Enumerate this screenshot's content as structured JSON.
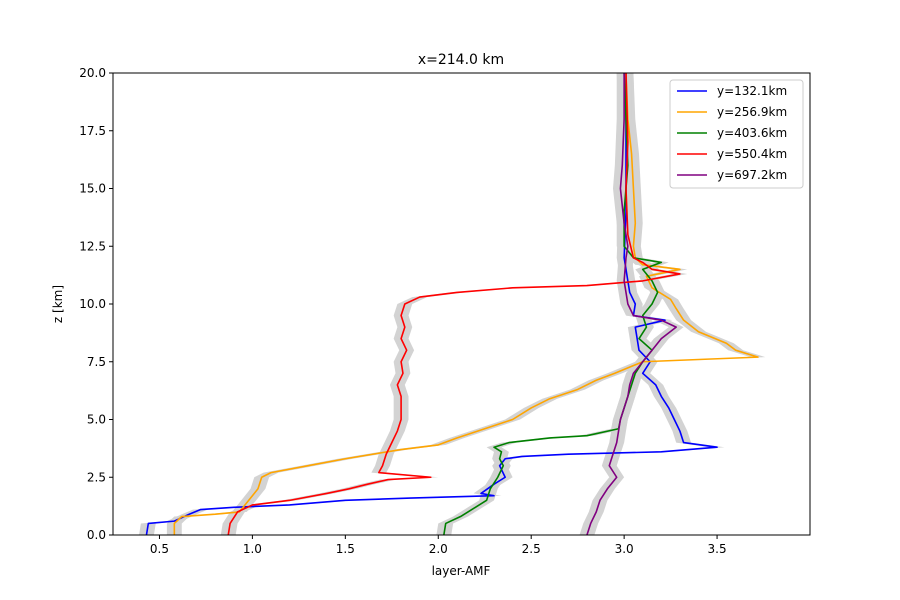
{
  "chart_data": {
    "type": "line",
    "title": "x=214.0 km",
    "xlabel": "layer-AMF",
    "ylabel": "z [km]",
    "xlim": [
      0.25,
      4.0
    ],
    "ylim": [
      0,
      20
    ],
    "x_ticks": [
      "0.5",
      "1.0",
      "1.5",
      "2.0",
      "2.5",
      "3.0",
      "3.5"
    ],
    "x_tick_values": [
      0.5,
      1.0,
      1.5,
      2.0,
      2.5,
      3.0,
      3.5
    ],
    "y_ticks": [
      "0.0",
      "2.5",
      "5.0",
      "7.5",
      "10.0",
      "12.5",
      "15.0",
      "17.5",
      "20.0"
    ],
    "y_tick_values": [
      0,
      2.5,
      5.0,
      7.5,
      10.0,
      12.5,
      15.0,
      17.5,
      20.0
    ],
    "grid": false,
    "legend_position": "top-right",
    "uncertainty_band_color": "#d3d3d3",
    "band_halfwidth": 0.04,
    "series": [
      {
        "name": "y=132.1km",
        "color": "#0000ff",
        "points": [
          [
            0.43,
            0.0
          ],
          [
            0.44,
            0.5
          ],
          [
            0.58,
            0.6
          ],
          [
            0.66,
            0.9
          ],
          [
            0.72,
            1.1
          ],
          [
            0.9,
            1.2
          ],
          [
            1.2,
            1.3
          ],
          [
            1.5,
            1.5
          ],
          [
            1.85,
            1.6
          ],
          [
            2.3,
            1.7
          ],
          [
            2.23,
            1.8
          ],
          [
            2.3,
            2.2
          ],
          [
            2.36,
            2.5
          ],
          [
            2.33,
            3.0
          ],
          [
            2.36,
            3.3
          ],
          [
            2.45,
            3.4
          ],
          [
            2.7,
            3.5
          ],
          [
            3.2,
            3.6
          ],
          [
            3.5,
            3.8
          ],
          [
            3.32,
            4.0
          ],
          [
            3.3,
            4.5
          ],
          [
            3.27,
            5.0
          ],
          [
            3.24,
            5.5
          ],
          [
            3.2,
            6.0
          ],
          [
            3.17,
            6.5
          ],
          [
            3.1,
            7.0
          ],
          [
            3.14,
            7.5
          ],
          [
            3.08,
            8.0
          ],
          [
            3.07,
            8.5
          ],
          [
            3.06,
            9.0
          ],
          [
            3.22,
            9.3
          ],
          [
            3.05,
            9.5
          ],
          [
            3.06,
            10.0
          ],
          [
            3.03,
            10.5
          ],
          [
            3.02,
            11.0
          ],
          [
            3.0,
            12.0
          ],
          [
            3.01,
            14.0
          ],
          [
            3.01,
            17.0
          ],
          [
            3.01,
            20.0
          ]
        ]
      },
      {
        "name": "y=256.9km",
        "color": "#ffa500",
        "points": [
          [
            0.58,
            0.0
          ],
          [
            0.58,
            0.5
          ],
          [
            0.62,
            0.8
          ],
          [
            0.8,
            0.9
          ],
          [
            0.93,
            1.0
          ],
          [
            0.98,
            1.5
          ],
          [
            1.03,
            2.0
          ],
          [
            1.05,
            2.5
          ],
          [
            1.1,
            2.7
          ],
          [
            1.3,
            3.0
          ],
          [
            1.5,
            3.3
          ],
          [
            1.8,
            3.7
          ],
          [
            2.0,
            3.9
          ],
          [
            2.1,
            4.2
          ],
          [
            2.25,
            4.6
          ],
          [
            2.4,
            5.0
          ],
          [
            2.5,
            5.5
          ],
          [
            2.6,
            5.9
          ],
          [
            2.75,
            6.3
          ],
          [
            2.85,
            6.7
          ],
          [
            2.95,
            7.0
          ],
          [
            3.1,
            7.5
          ],
          [
            3.72,
            7.7
          ],
          [
            3.6,
            8.0
          ],
          [
            3.55,
            8.3
          ],
          [
            3.4,
            8.8
          ],
          [
            3.32,
            9.3
          ],
          [
            3.28,
            9.8
          ],
          [
            3.25,
            10.2
          ],
          [
            3.15,
            10.7
          ],
          [
            3.12,
            11.2
          ],
          [
            3.3,
            11.5
          ],
          [
            3.1,
            11.7
          ],
          [
            3.06,
            12.0
          ],
          [
            3.05,
            12.5
          ],
          [
            3.06,
            13.5
          ],
          [
            3.05,
            15.0
          ],
          [
            3.04,
            16.5
          ],
          [
            3.02,
            18.0
          ],
          [
            3.01,
            20.0
          ]
        ]
      },
      {
        "name": "y=403.6km",
        "color": "#008000",
        "points": [
          [
            2.03,
            0.0
          ],
          [
            2.04,
            0.5
          ],
          [
            2.12,
            0.8
          ],
          [
            2.2,
            1.2
          ],
          [
            2.26,
            1.5
          ],
          [
            2.28,
            2.0
          ],
          [
            2.32,
            2.5
          ],
          [
            2.35,
            3.0
          ],
          [
            2.33,
            3.3
          ],
          [
            2.34,
            3.6
          ],
          [
            2.3,
            3.8
          ],
          [
            2.38,
            4.0
          ],
          [
            2.6,
            4.2
          ],
          [
            2.8,
            4.3
          ],
          [
            2.97,
            4.6
          ],
          [
            2.98,
            5.0
          ],
          [
            3.0,
            5.5
          ],
          [
            3.02,
            6.0
          ],
          [
            3.04,
            6.5
          ],
          [
            3.06,
            7.0
          ],
          [
            3.1,
            7.5
          ],
          [
            3.15,
            8.0
          ],
          [
            3.08,
            8.5
          ],
          [
            3.12,
            9.0
          ],
          [
            3.1,
            9.5
          ],
          [
            3.15,
            10.0
          ],
          [
            3.18,
            10.5
          ],
          [
            3.15,
            11.0
          ],
          [
            3.1,
            11.5
          ],
          [
            3.2,
            11.8
          ],
          [
            3.05,
            12.0
          ],
          [
            3.0,
            12.5
          ],
          [
            3.0,
            14.0
          ],
          [
            3.02,
            16.0
          ],
          [
            3.01,
            18.0
          ],
          [
            3.0,
            20.0
          ]
        ]
      },
      {
        "name": "y=550.4km",
        "color": "#ff0000",
        "points": [
          [
            0.87,
            0.0
          ],
          [
            0.88,
            0.5
          ],
          [
            0.92,
            1.0
          ],
          [
            1.0,
            1.3
          ],
          [
            1.2,
            1.5
          ],
          [
            1.4,
            1.8
          ],
          [
            1.52,
            2.0
          ],
          [
            1.62,
            2.2
          ],
          [
            1.73,
            2.4
          ],
          [
            1.96,
            2.5
          ],
          [
            1.68,
            2.7
          ],
          [
            1.7,
            3.0
          ],
          [
            1.72,
            3.5
          ],
          [
            1.75,
            4.0
          ],
          [
            1.78,
            4.5
          ],
          [
            1.8,
            5.0
          ],
          [
            1.8,
            6.0
          ],
          [
            1.78,
            6.5
          ],
          [
            1.81,
            7.0
          ],
          [
            1.8,
            7.5
          ],
          [
            1.83,
            8.0
          ],
          [
            1.8,
            8.5
          ],
          [
            1.82,
            9.0
          ],
          [
            1.8,
            9.5
          ],
          [
            1.82,
            10.0
          ],
          [
            1.9,
            10.3
          ],
          [
            2.1,
            10.5
          ],
          [
            2.4,
            10.7
          ],
          [
            2.8,
            10.8
          ],
          [
            3.1,
            11.0
          ],
          [
            3.3,
            11.3
          ],
          [
            3.15,
            11.5
          ],
          [
            3.1,
            11.8
          ],
          [
            3.05,
            12.0
          ],
          [
            3.02,
            13.0
          ],
          [
            3.01,
            15.0
          ],
          [
            3.02,
            17.0
          ],
          [
            3.01,
            20.0
          ]
        ]
      },
      {
        "name": "y=697.2km",
        "color": "#800080",
        "points": [
          [
            2.8,
            0.0
          ],
          [
            2.82,
            0.5
          ],
          [
            2.85,
            1.0
          ],
          [
            2.87,
            1.5
          ],
          [
            2.91,
            2.0
          ],
          [
            2.96,
            2.5
          ],
          [
            2.92,
            3.0
          ],
          [
            2.94,
            3.5
          ],
          [
            2.96,
            4.0
          ],
          [
            2.97,
            4.5
          ],
          [
            2.98,
            5.0
          ],
          [
            3.0,
            5.5
          ],
          [
            3.02,
            6.0
          ],
          [
            3.03,
            6.5
          ],
          [
            3.05,
            7.0
          ],
          [
            3.1,
            7.5
          ],
          [
            3.15,
            8.0
          ],
          [
            3.2,
            8.5
          ],
          [
            3.28,
            9.0
          ],
          [
            3.2,
            9.3
          ],
          [
            3.05,
            9.5
          ],
          [
            3.02,
            10.0
          ],
          [
            3.0,
            11.0
          ],
          [
            3.01,
            12.0
          ],
          [
            3.02,
            12.5
          ],
          [
            3.0,
            13.5
          ],
          [
            2.98,
            15.0
          ],
          [
            2.99,
            16.0
          ],
          [
            3.0,
            18.0
          ],
          [
            3.0,
            20.0
          ]
        ]
      }
    ]
  }
}
